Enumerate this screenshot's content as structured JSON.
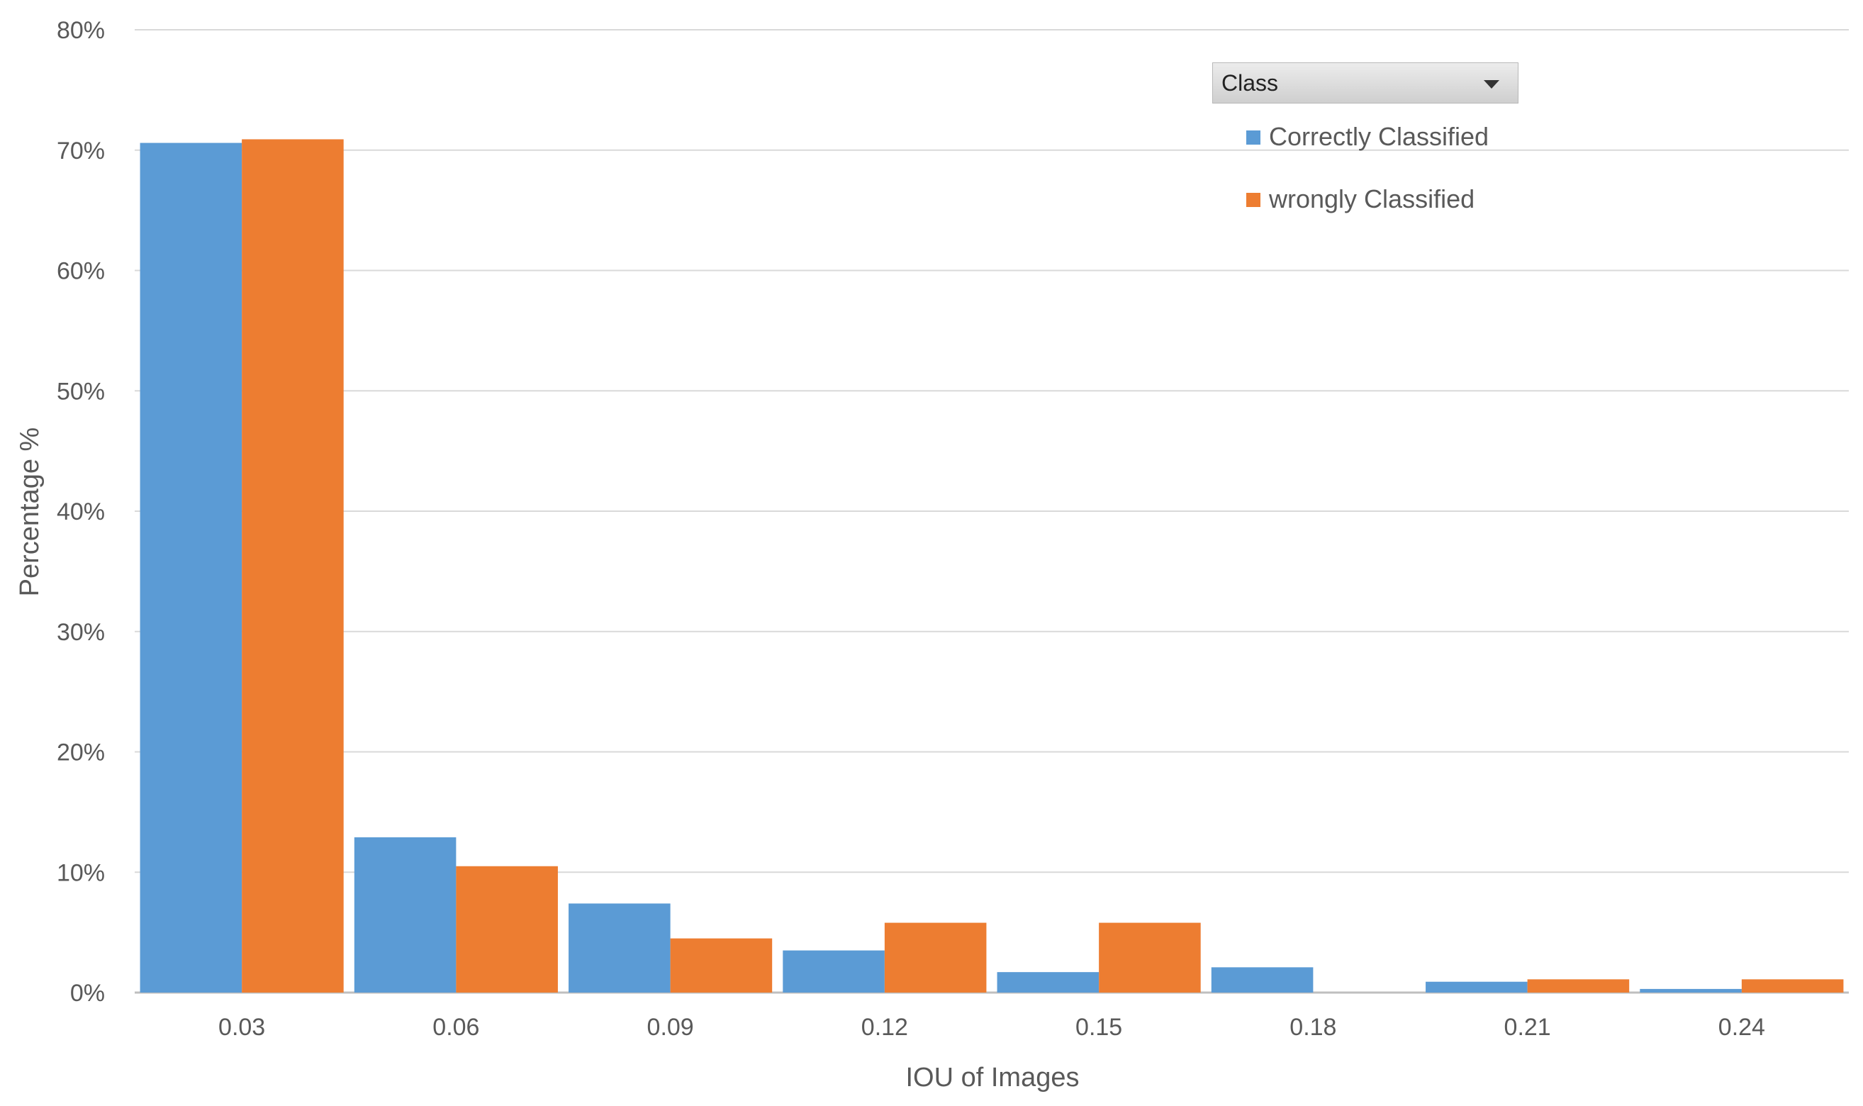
{
  "chart_data": {
    "type": "bar",
    "categories": [
      "0.03",
      "0.06",
      "0.09",
      "0.12",
      "0.15",
      "0.18",
      "0.21",
      "0.24"
    ],
    "series": [
      {
        "name": "Correctly Classified",
        "color": "#5B9BD5",
        "values": [
          70.6,
          12.9,
          7.4,
          3.5,
          1.7,
          2.1,
          0.9,
          0.3
        ]
      },
      {
        "name": "wrongly Classified",
        "color": "#ED7D31",
        "values": [
          70.9,
          10.5,
          4.5,
          5.8,
          5.8,
          0.0,
          1.1,
          1.1
        ]
      }
    ],
    "xlabel": "IOU of Images",
    "ylabel": "Percentage %",
    "ylim": [
      0,
      80
    ],
    "yticks": [
      "0%",
      "10%",
      "20%",
      "30%",
      "40%",
      "50%",
      "60%",
      "70%",
      "80%"
    ],
    "grid": true,
    "legend_position": "top-right"
  },
  "filter": {
    "label": "Class",
    "icon": "chevron-down-icon"
  },
  "colors": {
    "grid": "#d9d9d9",
    "axis": "#bfbfbf",
    "text": "#595959"
  }
}
